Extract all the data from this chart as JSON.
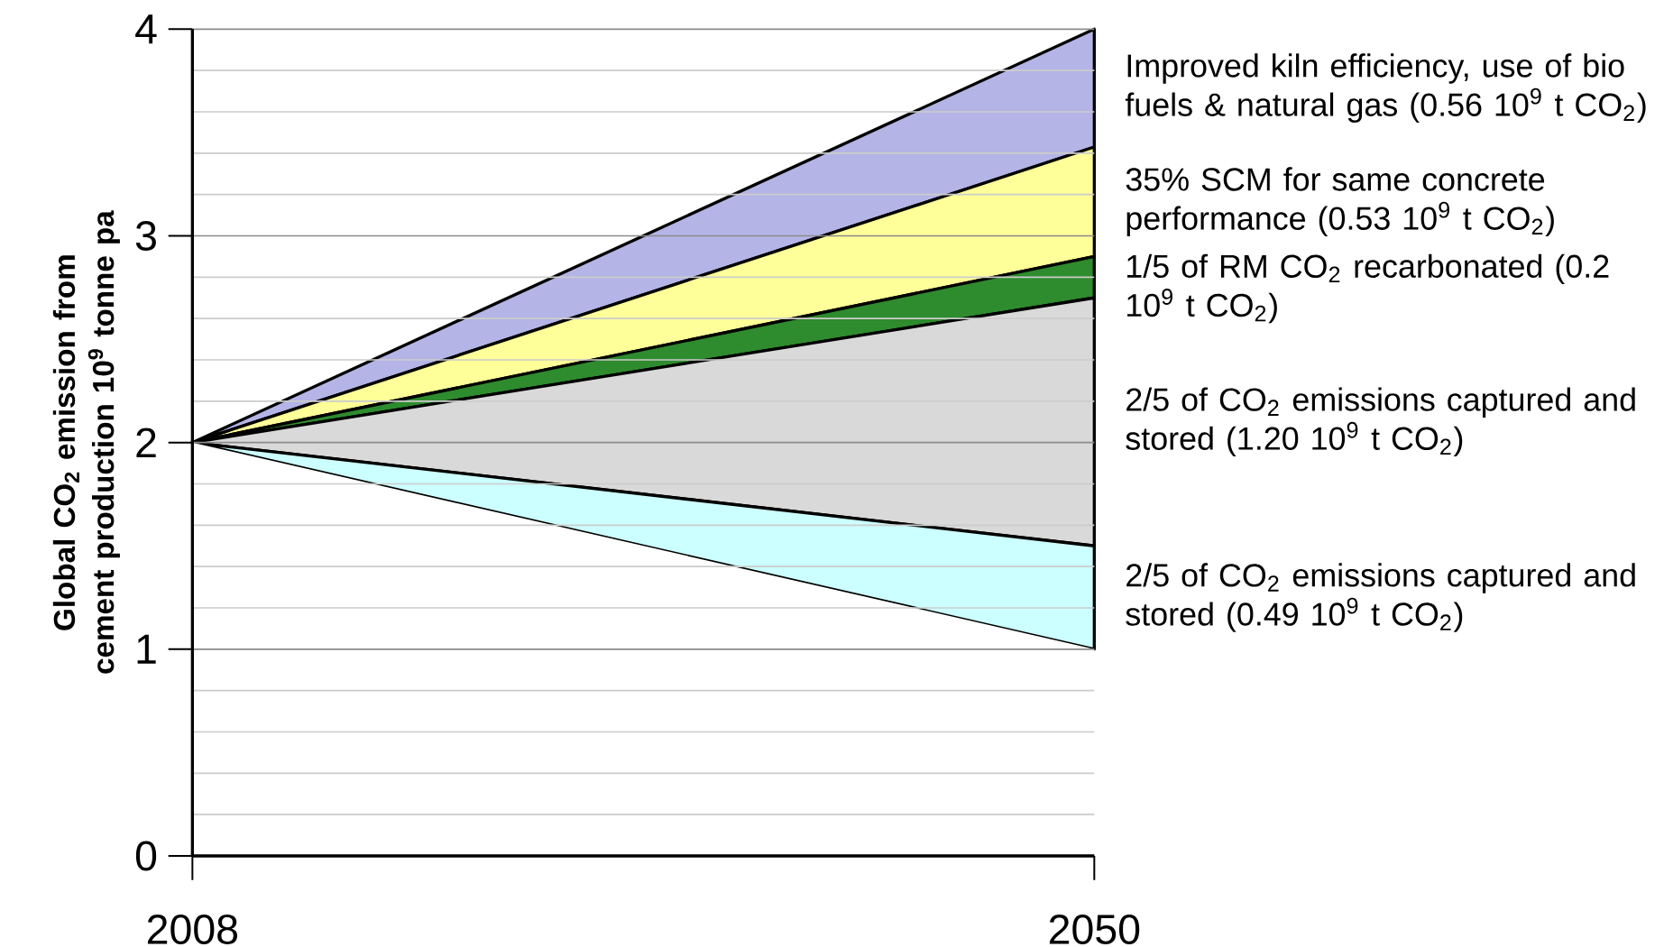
{
  "chart_data": {
    "type": "area",
    "stacked": true,
    "ylabel": "Global CO$_{2}$ emission from cement production 10$^{9}$ tonne pa",
    "x": [
      2008,
      2050
    ],
    "xlim": [
      2008,
      2050
    ],
    "xticks": [
      2008,
      2050
    ],
    "ylim": [
      0,
      4
    ],
    "yticks": [
      0,
      1,
      2,
      3,
      4
    ],
    "grid": "y",
    "series": [
      {
        "color": "#ffffff",
        "values": [
          2,
          1
        ]
      },
      {
        "name": "2/5 of CO$_{2}$ emissions captured and stored (0.49 10$^{9}$ t CO$_{2}$)",
        "color": "#ccffff",
        "values": [
          0,
          0.5
        ]
      },
      {
        "name": "2/5 of CO$_{2}$ emissions captured and stored (1.20 10$^{9}$ t CO$_{2}$)",
        "color": "#d9d9d9",
        "values": [
          0,
          1.2
        ]
      },
      {
        "name": "1/5 of RM CO$_{2}$ recarbonated (0.2 10$^{9}$ t CO$_{2}$)",
        "color": "#2e8b2e",
        "values": [
          0,
          0.2
        ]
      },
      {
        "name": "35% SCM for same concrete performance (0.53 10$^{9}$ t CO$_{2}$)",
        "color": "#ffff99",
        "values": [
          0,
          0.53
        ]
      },
      {
        "name": "Improved kiln efficiency, use of bio fuels & natural gas (0.56 10$^{9}$ t CO$_{2}$)",
        "color": "#b4b4e6",
        "values": [
          0,
          0.57
        ]
      }
    ]
  }
}
